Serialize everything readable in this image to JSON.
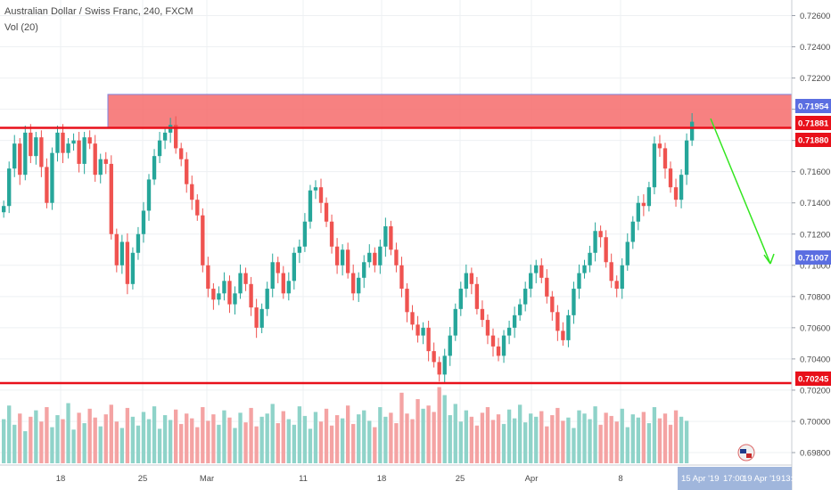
{
  "header": {
    "symbol_line": "Australian Dollar / Swiss Franc, 240, FXCM",
    "volume_line": "Vol (20)"
  },
  "chart_data": {
    "type": "candlestick",
    "instrument": "Australian Dollar / Swiss Franc",
    "timeframe": "240",
    "source": "FXCM",
    "ylim": [
      0.6972,
      0.727
    ],
    "price_ticks": [
      "0.72600",
      "0.72400",
      "0.72200",
      "0.72000",
      "0.71800",
      "0.71600",
      "0.71400",
      "0.71200",
      "0.71000",
      "0.70800",
      "0.70600",
      "0.70400",
      "0.70200",
      "0.70000",
      "0.69800"
    ],
    "date_ticks": [
      "18",
      "25",
      "Mar",
      "11",
      "18",
      "25",
      "Apr",
      "8"
    ],
    "time_axis_tags": [
      "15 Apr '19",
      "17:00",
      "19 Apr '19",
      "13:"
    ],
    "price_tags": [
      {
        "text": "0.71954",
        "color": "#5b6ee1"
      },
      {
        "text": "0.71881",
        "color": "#e8101a"
      },
      {
        "text": "0.71880",
        "color": "#e8101a"
      },
      {
        "text": "0.71007",
        "color": "#5b6ee1"
      },
      {
        "text": "0.70245",
        "color": "#e8101a"
      }
    ],
    "resistance_zone": [
      0.7188,
      0.72095
    ],
    "resistance_level": 0.71881,
    "support_level": 0.70245,
    "projection_arrow": {
      "from_price": 0.7194,
      "to_price": 0.7101,
      "color": "#33e61f"
    },
    "close_series": [
      0.7138,
      0.7162,
      0.7178,
      0.7158,
      0.7185,
      0.717,
      0.7182,
      0.7163,
      0.714,
      0.7172,
      0.7185,
      0.7172,
      0.7178,
      0.718,
      0.7165,
      0.7182,
      0.7178,
      0.7158,
      0.7168,
      0.7165,
      0.712,
      0.71,
      0.7115,
      0.7088,
      0.7108,
      0.712,
      0.7135,
      0.7155,
      0.717,
      0.718,
      0.7185,
      0.719,
      0.7175,
      0.7168,
      0.7152,
      0.7142,
      0.7132,
      0.71,
      0.7085,
      0.7078,
      0.7082,
      0.709,
      0.7075,
      0.7082,
      0.7095,
      0.7088,
      0.7073,
      0.706,
      0.7072,
      0.7085,
      0.7102,
      0.7095,
      0.7082,
      0.709,
      0.7108,
      0.7112,
      0.7128,
      0.7148,
      0.715,
      0.714,
      0.7128,
      0.7112,
      0.71,
      0.711,
      0.7095,
      0.7082,
      0.7092,
      0.7102,
      0.7108,
      0.71,
      0.7112,
      0.7125,
      0.711,
      0.71,
      0.7085,
      0.707,
      0.7062,
      0.7055,
      0.706,
      0.7045,
      0.7038,
      0.703,
      0.7042,
      0.7055,
      0.7072,
      0.7085,
      0.7095,
      0.7088,
      0.7072,
      0.7065,
      0.7055,
      0.7048,
      0.7042,
      0.7055,
      0.706,
      0.7068,
      0.7075,
      0.7085,
      0.7095,
      0.71,
      0.7092,
      0.708,
      0.707,
      0.7058,
      0.7052,
      0.7068,
      0.7085,
      0.7095,
      0.71,
      0.7108,
      0.7122,
      0.7118,
      0.7102,
      0.709,
      0.7085,
      0.71,
      0.7115,
      0.7128,
      0.714,
      0.7138,
      0.715,
      0.7178,
      0.7175,
      0.7162,
      0.715,
      0.7142,
      0.7158,
      0.718,
      0.7192
    ],
    "volume_ylim": [
      0,
      1
    ],
    "volume_series": [
      0.55,
      0.72,
      0.48,
      0.62,
      0.4,
      0.58,
      0.66,
      0.52,
      0.7,
      0.45,
      0.6,
      0.55,
      0.75,
      0.42,
      0.63,
      0.5,
      0.68,
      0.57,
      0.46,
      0.61,
      0.73,
      0.52,
      0.44,
      0.69,
      0.58,
      0.47,
      0.64,
      0.55,
      0.71,
      0.43,
      0.6,
      0.54,
      0.67,
      0.49,
      0.62,
      0.56,
      0.45,
      0.7,
      0.53,
      0.61,
      0.48,
      0.66,
      0.57,
      0.44,
      0.63,
      0.51,
      0.69,
      0.46,
      0.58,
      0.62,
      0.74,
      0.5,
      0.65,
      0.55,
      0.48,
      0.71,
      0.59,
      0.43,
      0.64,
      0.52,
      0.68,
      0.47,
      0.6,
      0.56,
      0.72,
      0.49,
      0.61,
      0.66,
      0.53,
      0.45,
      0.7,
      0.58,
      0.63,
      0.5,
      0.88,
      0.62,
      0.55,
      0.8,
      0.68,
      0.72,
      0.64,
      0.95,
      0.85,
      0.6,
      0.74,
      0.52,
      0.66,
      0.58,
      0.47,
      0.63,
      0.7,
      0.54,
      0.61,
      0.49,
      0.67,
      0.56,
      0.73,
      0.51,
      0.62,
      0.58,
      0.65,
      0.46,
      0.6,
      0.69,
      0.53,
      0.57,
      0.44,
      0.66,
      0.62,
      0.55,
      0.71,
      0.48,
      0.63,
      0.59,
      0.52,
      0.68,
      0.45,
      0.61,
      0.57,
      0.64,
      0.5,
      0.7,
      0.56,
      0.62,
      0.48,
      0.66,
      0.58,
      0.53
    ]
  }
}
